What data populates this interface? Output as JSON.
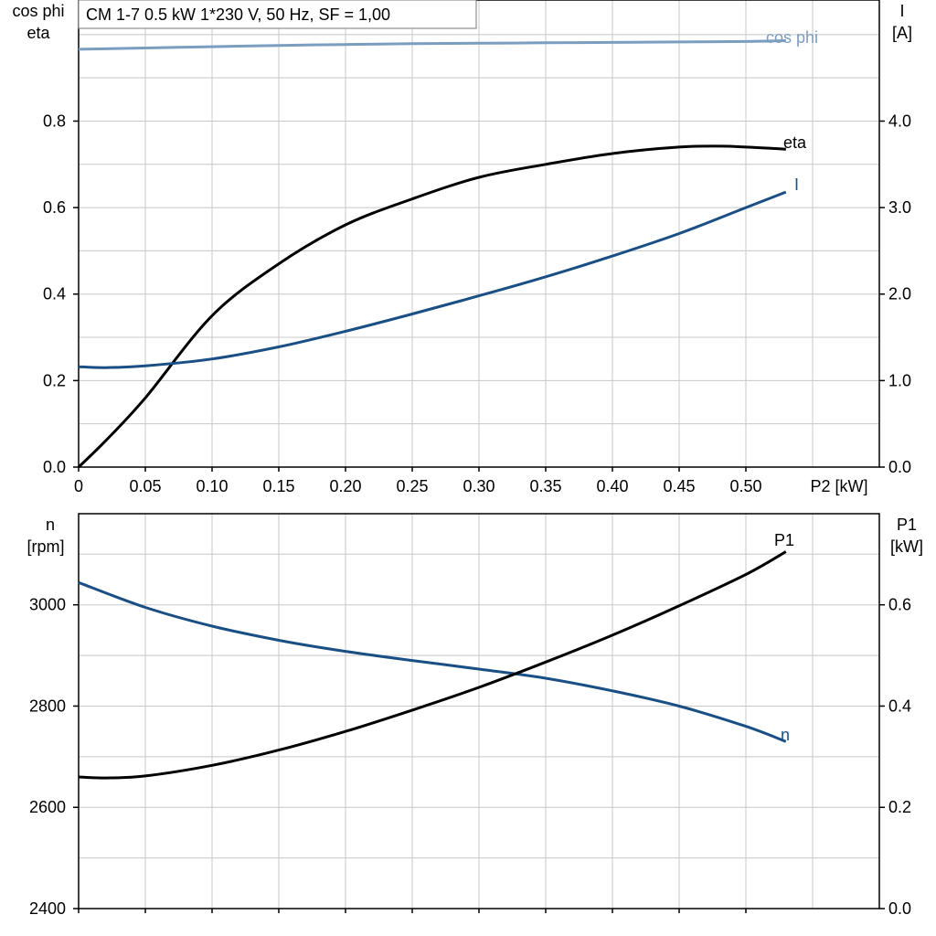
{
  "title": "CM 1-7   0.5 kW   1*230 V, 50 Hz, SF = 1,00",
  "chart_data": [
    {
      "type": "line",
      "name": "upper",
      "xlabel": "P2 [kW]",
      "ylabel_left": [
        "cos phi",
        "eta"
      ],
      "ylabel_right": [
        "I",
        "[A]"
      ],
      "xlim": [
        0,
        0.6
      ],
      "ylim_left": [
        0,
        1.08
      ],
      "ylim_right": [
        0,
        5.4
      ],
      "x_ticks": [
        0,
        0.05,
        0.1,
        0.15,
        0.2,
        0.25,
        0.3,
        0.35,
        0.4,
        0.45,
        0.5
      ],
      "x_tick_labels": [
        "0",
        "0.05",
        "0.10",
        "0.15",
        "0.20",
        "0.25",
        "0.30",
        "0.35",
        "0.40",
        "0.45",
        "0.50"
      ],
      "y_ticks_left": [
        0,
        0.2,
        0.4,
        0.6,
        0.8
      ],
      "y_tick_labels_left": [
        "0.0",
        "0.2",
        "0.4",
        "0.6",
        "0.8"
      ],
      "y_ticks_right": [
        0,
        1,
        2,
        3,
        4
      ],
      "y_tick_labels_right": [
        "0.0",
        "1.0",
        "2.0",
        "3.0",
        "4.0"
      ],
      "grid": true,
      "series": [
        {
          "name": "cos phi",
          "axis": "left",
          "color": "#7b9dc0",
          "x": [
            0,
            0.05,
            0.1,
            0.15,
            0.2,
            0.25,
            0.3,
            0.35,
            0.4,
            0.45,
            0.5,
            0.53
          ],
          "y": [
            0.966,
            0.969,
            0.972,
            0.975,
            0.977,
            0.979,
            0.98,
            0.981,
            0.982,
            0.983,
            0.984,
            0.986
          ]
        },
        {
          "name": "eta",
          "axis": "left",
          "color": "#000000",
          "x": [
            0,
            0.02,
            0.05,
            0.1,
            0.15,
            0.2,
            0.25,
            0.3,
            0.35,
            0.4,
            0.45,
            0.48,
            0.5,
            0.53
          ],
          "y": [
            0,
            0.06,
            0.16,
            0.35,
            0.47,
            0.56,
            0.62,
            0.67,
            0.7,
            0.725,
            0.74,
            0.742,
            0.74,
            0.735
          ]
        },
        {
          "name": "I",
          "axis": "right",
          "color": "#1a4f85",
          "x": [
            0,
            0.02,
            0.05,
            0.1,
            0.15,
            0.2,
            0.25,
            0.3,
            0.35,
            0.4,
            0.45,
            0.5,
            0.53
          ],
          "y": [
            1.16,
            1.15,
            1.17,
            1.25,
            1.39,
            1.57,
            1.77,
            1.98,
            2.2,
            2.44,
            2.7,
            3.0,
            3.18
          ]
        }
      ]
    },
    {
      "type": "line",
      "name": "lower",
      "ylabel_left": [
        "n",
        "[rpm]"
      ],
      "ylabel_right": [
        "P1",
        "[kW]"
      ],
      "xlim": [
        0,
        0.6
      ],
      "ylim_left": [
        2400,
        3180
      ],
      "ylim_right": [
        0,
        0.78
      ],
      "y_ticks_left": [
        2400,
        2600,
        2800,
        3000
      ],
      "y_tick_labels_left": [
        "2400",
        "2600",
        "2800",
        "3000"
      ],
      "y_ticks_right": [
        0,
        0.2,
        0.4,
        0.6
      ],
      "y_tick_labels_right": [
        "0.0",
        "0.2",
        "0.4",
        "0.6"
      ],
      "grid": true,
      "series": [
        {
          "name": "n",
          "axis": "left",
          "color": "#1a4f85",
          "x": [
            0,
            0.05,
            0.1,
            0.15,
            0.2,
            0.25,
            0.3,
            0.35,
            0.4,
            0.45,
            0.5,
            0.53
          ],
          "y": [
            3044,
            2995,
            2958,
            2930,
            2908,
            2890,
            2873,
            2855,
            2830,
            2800,
            2760,
            2730
          ]
        },
        {
          "name": "P1",
          "axis": "right",
          "color": "#000000",
          "x": [
            0,
            0.02,
            0.05,
            0.1,
            0.15,
            0.2,
            0.25,
            0.3,
            0.35,
            0.4,
            0.45,
            0.5,
            0.53
          ],
          "y": [
            0.26,
            0.258,
            0.262,
            0.283,
            0.313,
            0.35,
            0.392,
            0.437,
            0.487,
            0.54,
            0.598,
            0.66,
            0.705
          ]
        }
      ]
    }
  ]
}
